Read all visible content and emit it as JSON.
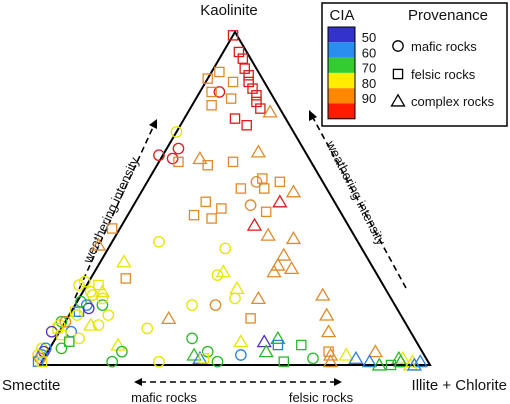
{
  "chart_data": {
    "type": "ternary-scatter",
    "corner_labels": {
      "top": "Kaolinite",
      "left": "Smectite",
      "right": "Illite + Chlorite"
    },
    "annotations": {
      "left_arrow": "weathering intensity",
      "right_arrow": "weathering intensity",
      "bottom_left": "mafic rocks",
      "bottom_right": "felsic rocks"
    },
    "legend": {
      "cia_title": "CIA",
      "provenance_title": "Provenance",
      "cia_scale": [
        {
          "label": "50",
          "color": "#3333cc"
        },
        {
          "label": "60",
          "color": "#2a8ef0"
        },
        {
          "label": "70",
          "color": "#33cc33"
        },
        {
          "label": "80",
          "color": "#ffee00"
        },
        {
          "label": "90",
          "color": "#ff8800"
        },
        {
          "label": "",
          "color": "#ff1a00"
        }
      ],
      "provenance": [
        {
          "label": "mafic rocks",
          "marker": "circle"
        },
        {
          "label": "felsic rocks",
          "marker": "square"
        },
        {
          "label": "complex rocks",
          "marker": "triangle"
        }
      ]
    },
    "marker_colors": {
      "50": "#5533bb",
      "60": "#2a7fdd",
      "70": "#2ab82a",
      "80": "#e6e600",
      "90": "#e08a2a",
      "100": "#dd1a1a"
    },
    "point_fields": [
      "kaolinite_pct",
      "illite_chlorite_pct",
      "cia_class",
      "provenance"
    ],
    "points": [
      [
        99,
        0,
        100,
        "square"
      ],
      [
        94,
        4,
        100,
        "square"
      ],
      [
        92,
        6,
        100,
        "square"
      ],
      [
        89,
        8,
        100,
        "square"
      ],
      [
        87,
        10,
        100,
        "square"
      ],
      [
        85,
        11,
        100,
        "square"
      ],
      [
        83,
        13,
        100,
        "square"
      ],
      [
        81,
        15,
        100,
        "square"
      ],
      [
        79,
        16,
        100,
        "square"
      ],
      [
        77,
        18,
        100,
        "square"
      ],
      [
        88,
        2,
        90,
        "square"
      ],
      [
        86,
        0,
        90,
        "square"
      ],
      [
        85,
        7,
        90,
        "square"
      ],
      [
        82,
        5,
        100,
        "circle"
      ],
      [
        82,
        3,
        90,
        "square"
      ],
      [
        80,
        9,
        90,
        "square"
      ],
      [
        78,
        5,
        90,
        "square"
      ],
      [
        76,
        21,
        90,
        "triangle"
      ],
      [
        74,
        13,
        100,
        "square"
      ],
      [
        72,
        17,
        100,
        "square"
      ],
      [
        70,
        0,
        80,
        "circle"
      ],
      [
        65,
        3,
        100,
        "circle"
      ],
      [
        63,
        -1,
        100,
        "circle"
      ],
      [
        62,
        3,
        100,
        "circle"
      ],
      [
        61,
        5,
        90,
        "square"
      ],
      [
        60,
        13,
        90,
        "square"
      ],
      [
        62,
        10,
        90,
        "triangle"
      ],
      [
        61,
        19,
        90,
        "square"
      ],
      [
        64,
        24,
        90,
        "triangle"
      ],
      [
        56,
        29,
        90,
        "square"
      ],
      [
        55,
        34,
        90,
        "square"
      ],
      [
        55,
        28,
        90,
        "circle"
      ],
      [
        53,
        31,
        90,
        "square"
      ],
      [
        53,
        25,
        90,
        "square"
      ],
      [
        52,
        39,
        90,
        "triangle"
      ],
      [
        49,
        37,
        100,
        "triangle"
      ],
      [
        49,
        18,
        90,
        "square"
      ],
      [
        48,
        30,
        90,
        "circle"
      ],
      [
        47,
        23,
        90,
        "square"
      ],
      [
        45,
        17,
        90,
        "square"
      ],
      [
        46,
        35,
        90,
        "square"
      ],
      [
        44,
        22,
        90,
        "square"
      ],
      [
        42,
        34,
        100,
        "triangle"
      ],
      [
        41,
        -2,
        90,
        "square"
      ],
      [
        36,
        -3,
        90,
        "triangle"
      ],
      [
        39,
        39,
        90,
        "triangle"
      ],
      [
        38,
        46,
        90,
        "triangle"
      ],
      [
        37,
        12,
        80,
        "circle"
      ],
      [
        35,
        30,
        80,
        "circle"
      ],
      [
        33,
        46,
        90,
        "triangle"
      ],
      [
        30,
        46,
        90,
        "triangle"
      ],
      [
        28,
        46,
        90,
        "triangle"
      ],
      [
        29,
        50,
        90,
        "triangle"
      ],
      [
        28,
        33,
        80,
        "triangle"
      ],
      [
        31,
        6,
        80,
        "triangle"
      ],
      [
        27,
        32,
        80,
        "circle"
      ],
      [
        25,
        -1,
        80,
        "circle"
      ],
      [
        26,
        9,
        90,
        "square"
      ],
      [
        24,
        -2,
        80,
        "circle"
      ],
      [
        23,
        39,
        80,
        "triangle"
      ],
      [
        21,
        3,
        80,
        "circle"
      ],
      [
        21,
        62,
        90,
        "triangle"
      ],
      [
        20,
        40,
        80,
        "circle"
      ],
      [
        18,
        36,
        90,
        "circle"
      ],
      [
        18,
        30,
        80,
        "circle"
      ],
      [
        20,
        46,
        90,
        "triangle"
      ],
      [
        15,
        66,
        90,
        "triangle"
      ],
      [
        14,
        26,
        90,
        "triangle"
      ],
      [
        14,
        47,
        90,
        "square"
      ],
      [
        13,
        -1,
        70,
        "circle"
      ],
      [
        12,
        -1,
        80,
        "circle"
      ],
      [
        13,
        0,
        90,
        "circle"
      ],
      [
        12,
        7,
        80,
        "triangle"
      ],
      [
        12,
        9,
        80,
        "circle"
      ],
      [
        11,
        -1,
        80,
        "square"
      ],
      [
        10,
        3,
        60,
        "circle"
      ],
      [
        10,
        -2,
        50,
        "circle"
      ],
      [
        11,
        22,
        80,
        "circle"
      ],
      [
        10,
        69,
        90,
        "triangle"
      ],
      [
        9,
        1,
        80,
        "square"
      ],
      [
        8,
        6,
        80,
        "circle"
      ],
      [
        8,
        35,
        70,
        "circle"
      ],
      [
        8,
        57,
        70,
        "triangle"
      ],
      [
        7,
        4,
        70,
        "square"
      ],
      [
        7,
        54,
        50,
        "triangle"
      ],
      [
        6,
        58,
        60,
        "square"
      ],
      [
        6,
        17,
        80,
        "triangle"
      ],
      [
        6,
        64,
        70,
        "square"
      ],
      [
        7,
        48,
        80,
        "triangle"
      ],
      [
        5,
        -2,
        80,
        "circle"
      ],
      [
        5,
        3,
        70,
        "circle"
      ],
      [
        5,
        -1,
        60,
        "circle"
      ],
      [
        4,
        -1,
        50,
        "circle"
      ],
      [
        4,
        19,
        70,
        "circle"
      ],
      [
        4,
        41,
        70,
        "circle"
      ],
      [
        4,
        72,
        90,
        "square"
      ],
      [
        4,
        56,
        70,
        "triangle"
      ],
      [
        4,
        84,
        90,
        "triangle"
      ],
      [
        3,
        -1,
        60,
        "circle"
      ],
      [
        3,
        -2,
        80,
        "circle"
      ],
      [
        3,
        38,
        70,
        "triangle"
      ],
      [
        3,
        77,
        80,
        "triangle"
      ],
      [
        3,
        73,
        90,
        "triangle"
      ],
      [
        3,
        50,
        60,
        "circle"
      ],
      [
        2,
        -1,
        90,
        "circle"
      ],
      [
        2,
        40,
        60,
        "triangle"
      ],
      [
        2,
        41,
        80,
        "square"
      ],
      [
        2,
        69,
        70,
        "circle"
      ],
      [
        2,
        80,
        60,
        "triangle"
      ],
      [
        2,
        91,
        70,
        "triangle"
      ],
      [
        2,
        92,
        80,
        "triangle"
      ],
      [
        1,
        -1,
        60,
        "square"
      ],
      [
        1,
        0,
        80,
        "square"
      ],
      [
        1,
        18,
        70,
        "circle"
      ],
      [
        1,
        30,
        80,
        "circle"
      ],
      [
        1,
        45,
        70,
        "circle"
      ],
      [
        1,
        62,
        70,
        "square"
      ],
      [
        1,
        74,
        90,
        "triangle"
      ],
      [
        1,
        84,
        60,
        "triangle"
      ],
      [
        1,
        92,
        70,
        "triangle"
      ],
      [
        1,
        95,
        80,
        "triangle"
      ],
      [
        1,
        97,
        60,
        "triangle"
      ],
      [
        0,
        87,
        70,
        "triangle"
      ],
      [
        0,
        90,
        70,
        "square"
      ],
      [
        0,
        95,
        80,
        "triangle"
      ],
      [
        0,
        96,
        60,
        "triangle"
      ],
      [
        16,
        1,
        80,
        "square"
      ],
      [
        16,
        2,
        60,
        "square"
      ],
      [
        18,
        3,
        60,
        "circle"
      ],
      [
        17,
        4,
        50,
        "circle"
      ],
      [
        18,
        7,
        70,
        "circle"
      ],
      [
        20,
        6,
        80,
        "circle"
      ],
      [
        22,
        2,
        80,
        "circle"
      ],
      [
        22,
        5,
        80,
        "triangle"
      ],
      [
        24,
        3,
        80,
        "square"
      ],
      [
        15,
        10,
        80,
        "circle"
      ],
      [
        15,
        2,
        80,
        "circle"
      ],
      [
        19,
        1,
        70,
        "circle"
      ]
    ]
  }
}
